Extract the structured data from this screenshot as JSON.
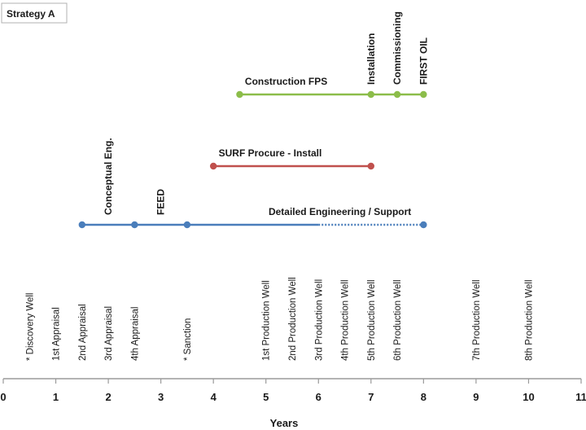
{
  "chart_data": {
    "type": "timeline",
    "title_box": "Strategy A",
    "xlabel": "Years",
    "xlim": [
      0,
      11
    ],
    "xticks": [
      "0",
      "1",
      "2",
      "3",
      "4",
      "5",
      "6",
      "7",
      "8",
      "9",
      "10",
      "11"
    ],
    "grid": false,
    "phases": [
      {
        "name": "Construction FPS",
        "color": "#8cbd4a",
        "points": [
          4.5,
          7,
          7.5,
          8
        ],
        "segments": [
          [
            4.5,
            8
          ]
        ],
        "dotted_segments": [],
        "labels": [
          {
            "text": "Construction FPS",
            "x": 4.6,
            "orientation": "horizontal"
          },
          {
            "text": "Installation",
            "x": 7.0,
            "orientation": "vertical"
          },
          {
            "text": "Commissioning",
            "x": 7.5,
            "orientation": "vertical"
          },
          {
            "text": "FIRST OIL",
            "x": 8.0,
            "orientation": "vertical"
          }
        ]
      },
      {
        "name": "SURF Procure - Install",
        "color": "#c0504d",
        "points": [
          4,
          7
        ],
        "segments": [
          [
            4,
            7
          ]
        ],
        "dotted_segments": [],
        "labels": [
          {
            "text": "SURF Procure - Install",
            "x": 4.1,
            "orientation": "horizontal"
          }
        ]
      },
      {
        "name": "Detailed Engineering / Support",
        "color": "#4a7ebb",
        "points": [
          1.5,
          2.5,
          3.5,
          8
        ],
        "segments": [
          [
            1.5,
            6
          ]
        ],
        "dotted_segments": [
          [
            6,
            8
          ]
        ],
        "labels": [
          {
            "text": "Conceptual Eng.",
            "x": 2.0,
            "orientation": "vertical"
          },
          {
            "text": "FEED",
            "x": 3.0,
            "orientation": "vertical"
          },
          {
            "text": "Detailed Engineering / Support",
            "x": 5.05,
            "orientation": "horizontal"
          }
        ]
      }
    ],
    "milestones": [
      {
        "text": "* Discovery Well",
        "x": 0.5
      },
      {
        "text": "1st Appraisal",
        "x": 1.0
      },
      {
        "text": "2nd Appraisal",
        "x": 1.5
      },
      {
        "text": "3rd  Appraisal",
        "x": 2.0
      },
      {
        "text": "4th Appraisal",
        "x": 2.5
      },
      {
        "text": "* Sanction",
        "x": 3.5
      },
      {
        "text": "1st Production Well",
        "x": 5.0
      },
      {
        "text": "2nd Production Well",
        "x": 5.5
      },
      {
        "text": "3rd Production Well",
        "x": 6.0
      },
      {
        "text": "4th Production Well",
        "x": 6.5
      },
      {
        "text": "5th Production Well",
        "x": 7.0
      },
      {
        "text": "6th Production Well",
        "x": 7.5
      },
      {
        "text": "7th Production Well",
        "x": 9.0
      },
      {
        "text": "8th Production Well",
        "x": 10.0
      }
    ]
  }
}
